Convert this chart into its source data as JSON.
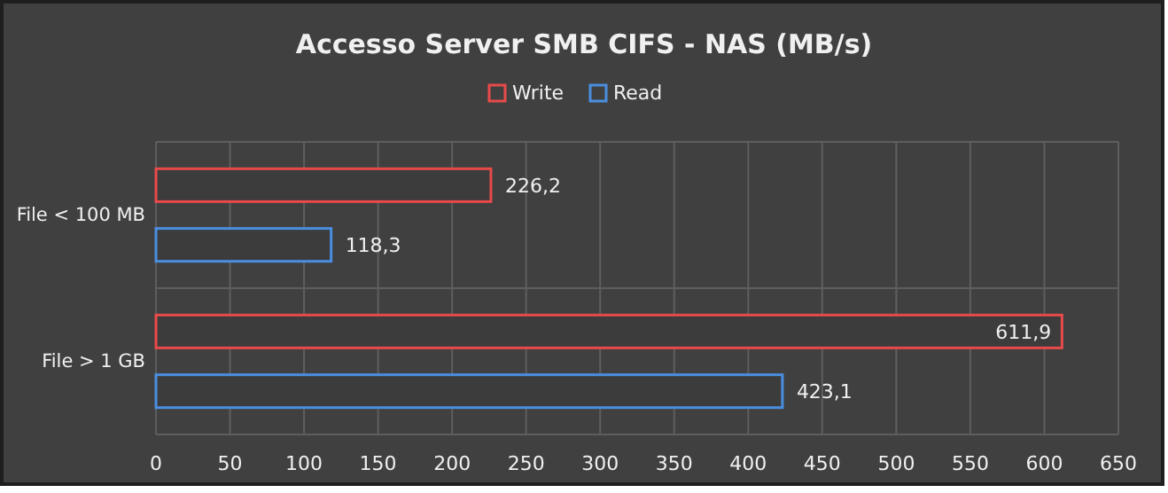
{
  "chart_data": {
    "type": "bar",
    "orientation": "horizontal",
    "title": "Accesso Server SMB CIFS - NAS (MB/s)",
    "categories": [
      "File < 100 MB",
      "File > 1 GB"
    ],
    "series": [
      {
        "name": "Write",
        "color": "#e84a4a",
        "values": [
          226.2,
          611.9
        ],
        "value_labels": [
          "226,2",
          "611,9"
        ]
      },
      {
        "name": "Read",
        "color": "#4a8ee0",
        "values": [
          118.3,
          423.1
        ],
        "value_labels": [
          "118,3",
          "423,1"
        ]
      }
    ],
    "xlim": [
      0,
      650
    ],
    "xticks": [
      0,
      50,
      100,
      150,
      200,
      250,
      300,
      350,
      400,
      450,
      500,
      550,
      600,
      650
    ],
    "grid": true,
    "legend": "top"
  }
}
